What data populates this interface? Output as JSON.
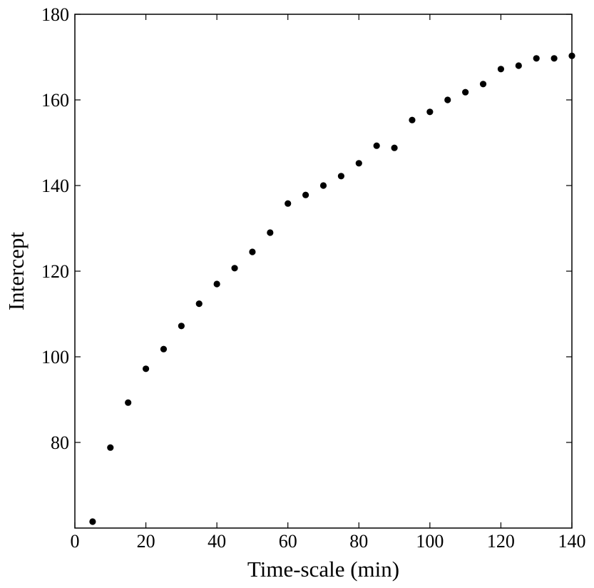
{
  "chart_data": {
    "type": "scatter",
    "xlabel": "Time-scale (min)",
    "ylabel": "Intercept",
    "xlim": [
      0,
      140
    ],
    "ylim": [
      60,
      180
    ],
    "xticks": [
      0,
      20,
      40,
      60,
      80,
      100,
      120,
      140
    ],
    "yticks": [
      80,
      100,
      120,
      140,
      160,
      180
    ],
    "grid": false,
    "marker_color": "#000000",
    "series": [
      {
        "points": [
          [
            5,
            61.5
          ],
          [
            10,
            78.8
          ],
          [
            15,
            89.3
          ],
          [
            20,
            97.2
          ],
          [
            25,
            101.8
          ],
          [
            30,
            107.2
          ],
          [
            35,
            112.4
          ],
          [
            40,
            117.0
          ],
          [
            45,
            120.7
          ],
          [
            50,
            124.5
          ],
          [
            55,
            129.0
          ],
          [
            60,
            135.8
          ],
          [
            65,
            137.8
          ],
          [
            70,
            140.0
          ],
          [
            75,
            142.2
          ],
          [
            80,
            145.2
          ],
          [
            85,
            149.3
          ],
          [
            90,
            148.8
          ],
          [
            95,
            155.3
          ],
          [
            100,
            157.2
          ],
          [
            105,
            160.0
          ],
          [
            110,
            161.8
          ],
          [
            115,
            163.7
          ],
          [
            120,
            167.2
          ],
          [
            125,
            168.0
          ],
          [
            130,
            169.7
          ],
          [
            135,
            169.7
          ],
          [
            140,
            170.3
          ]
        ]
      }
    ]
  }
}
